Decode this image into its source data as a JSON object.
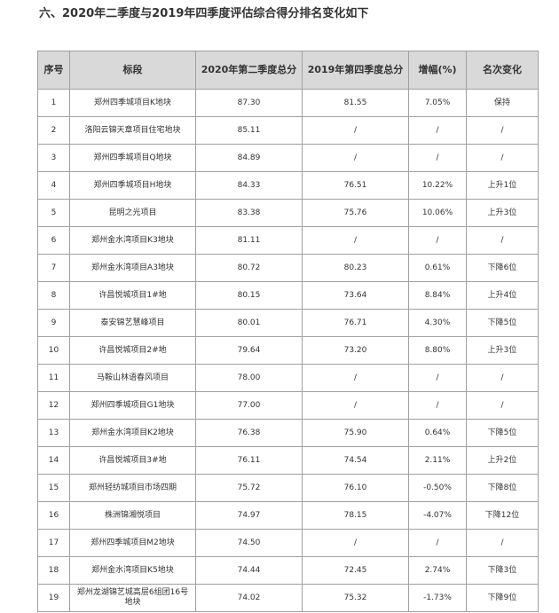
{
  "header": {
    "title": "六、2020年二季度与2019年四季度评估综合得分排名变化如下"
  },
  "table": {
    "columns": [
      "序号",
      "标段",
      "2020年第二季度总分",
      "2019年第四季度总分",
      "增幅(%)",
      "名次变化"
    ],
    "rows": [
      [
        "1",
        "郑州四季城项目K地块",
        "87.30",
        "81.55",
        "7.05%",
        "保持"
      ],
      [
        "2",
        "洛阳云锦天章项目住宅地块",
        "85.11",
        "/",
        "/",
        "/"
      ],
      [
        "3",
        "郑州四季城项目Q地块",
        "84.89",
        "/",
        "/",
        "/"
      ],
      [
        "4",
        "郑州四季城项目H地块",
        "84.33",
        "76.51",
        "10.22%",
        "上升1位"
      ],
      [
        "5",
        "昆明之光项目",
        "83.38",
        "75.76",
        "10.06%",
        "上升3位"
      ],
      [
        "6",
        "郑州金水湾项目K3地块",
        "81.11",
        "/",
        "/",
        "/"
      ],
      [
        "7",
        "郑州金水湾项目A3地块",
        "80.72",
        "80.23",
        "0.61%",
        "下降6位"
      ],
      [
        "8",
        "许昌悦城项目1#地",
        "80.15",
        "73.64",
        "8.84%",
        "上升4位"
      ],
      [
        "9",
        "泰安锦艺慧峰项目",
        "80.01",
        "76.71",
        "4.30%",
        "下降5位"
      ],
      [
        "10",
        "许昌悦城项目2#地",
        "79.64",
        "73.20",
        "8.80%",
        "上升3位"
      ],
      [
        "11",
        "马鞍山林语春风项目",
        "78.00",
        "/",
        "/",
        "/"
      ],
      [
        "12",
        "郑州四季城项目G1地块",
        "77.00",
        "/",
        "/",
        "/"
      ],
      [
        "13",
        "郑州金水湾项目K2地块",
        "76.38",
        "75.90",
        "0.64%",
        "下降5位"
      ],
      [
        "14",
        "许昌悦城项目3#地",
        "76.11",
        "74.54",
        "2.11%",
        "上升2位"
      ],
      [
        "15",
        "郑州轻纺城项目市场四期",
        "75.72",
        "76.10",
        "-0.50%",
        "下降8位"
      ],
      [
        "16",
        "株洲锦湘悦项目",
        "74.97",
        "78.15",
        "-4.07%",
        "下降12位"
      ],
      [
        "17",
        "郑州四季城项目M2地块",
        "74.50",
        "/",
        "/",
        "/"
      ],
      [
        "18",
        "郑州金水湾项目K5地块",
        "74.44",
        "72.45",
        "2.74%",
        "下降3位"
      ],
      [
        "19",
        "郑州龙湖锦艺城高层6组团16号地块",
        "74.02",
        "75.32",
        "-1.73%",
        "下降9位"
      ]
    ]
  }
}
